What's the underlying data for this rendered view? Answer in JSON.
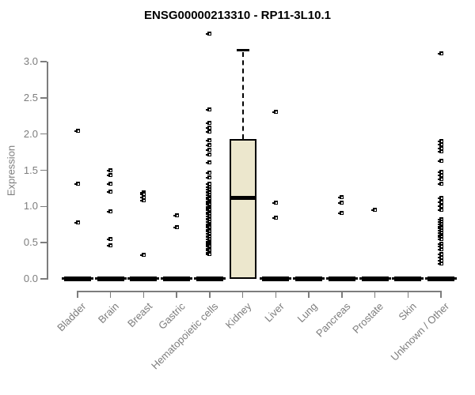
{
  "chart_data": {
    "type": "boxplot",
    "title": "ENSG00000213310 - RP11-3L10.1",
    "ylabel": "Expression",
    "xlabel": "",
    "ylim": [
      0.0,
      3.45
    ],
    "yticks": [
      0.0,
      0.5,
      1.0,
      1.5,
      2.0,
      2.5,
      3.0
    ],
    "grid": false,
    "legend": "none",
    "categories": [
      "Bladder",
      "Brain",
      "Breast",
      "Gastric",
      "Hematopoietic cells",
      "Kidney",
      "Liver",
      "Lung",
      "Pancreas",
      "Prostate",
      "Skin",
      "Unknown / Other"
    ],
    "groups": [
      {
        "label": "Bladder",
        "zero_median_bar": true,
        "box": null,
        "points": [
          2.05,
          1.31,
          0.78
        ]
      },
      {
        "label": "Brain",
        "zero_median_bar": true,
        "box": null,
        "points": [
          1.5,
          1.44,
          1.31,
          1.21,
          0.93,
          0.55,
          0.46
        ]
      },
      {
        "label": "Breast",
        "zero_median_bar": true,
        "box": null,
        "points": [
          1.2,
          1.17,
          1.13,
          1.09,
          0.33
        ]
      },
      {
        "label": "Gastric",
        "zero_median_bar": true,
        "box": null,
        "points": [
          0.88,
          0.72
        ]
      },
      {
        "label": "Hematopoietic cells",
        "zero_median_bar": true,
        "box": null,
        "points": [
          3.39,
          2.34,
          2.16,
          2.09,
          2.03,
          1.92,
          1.85,
          1.78,
          1.72,
          1.61,
          1.47,
          1.4,
          1.31,
          1.27,
          1.24,
          1.21,
          1.19,
          1.16,
          1.13,
          1.11,
          1.08,
          1.05,
          1.03,
          1.0,
          0.98,
          0.95,
          0.92,
          0.9,
          0.87,
          0.84,
          0.82,
          0.79,
          0.76,
          0.74,
          0.71,
          0.68,
          0.66,
          0.63,
          0.6,
          0.58,
          0.55,
          0.52,
          0.5,
          0.47,
          0.45,
          0.42,
          0.4,
          0.37,
          0.34
        ]
      },
      {
        "label": "Kidney",
        "zero_median_bar": false,
        "box": {
          "q1": 0.0,
          "median": 1.12,
          "q3": 1.93,
          "whisker_low": 0.0,
          "whisker_high": 3.16
        },
        "points": []
      },
      {
        "label": "Liver",
        "zero_median_bar": true,
        "box": null,
        "points": [
          2.31,
          1.05,
          0.85
        ]
      },
      {
        "label": "Lung",
        "zero_median_bar": true,
        "box": null,
        "points": []
      },
      {
        "label": "Pancreas",
        "zero_median_bar": true,
        "box": null,
        "points": [
          1.13,
          1.05,
          0.91
        ]
      },
      {
        "label": "Prostate",
        "zero_median_bar": true,
        "box": null,
        "points": [
          0.95
        ]
      },
      {
        "label": "Skin",
        "zero_median_bar": true,
        "box": null,
        "points": []
      },
      {
        "label": "Unknown / Other",
        "zero_median_bar": true,
        "box": null,
        "points": [
          3.12,
          1.9,
          1.86,
          1.81,
          1.76,
          1.63,
          1.48,
          1.43,
          1.38,
          1.31,
          1.12,
          1.06,
          1.01,
          0.96,
          0.82,
          0.79,
          0.76,
          0.73,
          0.7,
          0.67,
          0.64,
          0.61,
          0.58,
          0.55,
          0.49,
          0.45,
          0.41,
          0.34,
          0.3,
          0.26,
          0.21
        ]
      }
    ]
  },
  "colors": {
    "background": "#ffffff",
    "title": "#000000",
    "axis": "#7d7d7d",
    "tick_label": "#7d7d7d",
    "point": "#000000",
    "box_fill": "#ece7cd",
    "box_border": "#000000",
    "median": "#000000",
    "zero_bar": "#000000"
  }
}
